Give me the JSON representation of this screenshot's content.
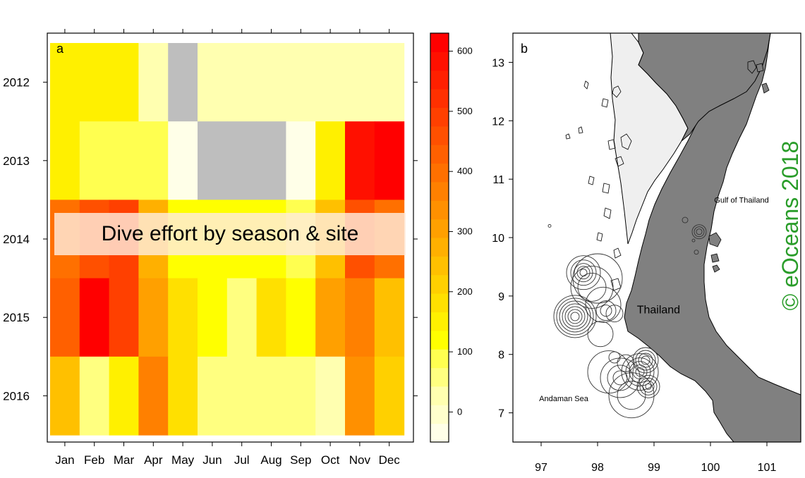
{
  "overlay_title": "Dive effort by season & site",
  "watermark": "© eOceans 2018",
  "chart_data": [
    {
      "type": "heatmap",
      "panel_label": "a",
      "x_categories": [
        "Jan",
        "Feb",
        "Mar",
        "Apr",
        "May",
        "Jun",
        "Jul",
        "Aug",
        "Sep",
        "Oct",
        "Nov",
        "Dec"
      ],
      "y_categories": [
        "2012",
        "2013",
        "2014",
        "2015",
        "2016"
      ],
      "missing_color": "#bebebe",
      "values": [
        [
          150,
          150,
          150,
          20,
          null,
          40,
          40,
          40,
          40,
          40,
          40,
          40
        ],
        [
          150,
          100,
          100,
          100,
          -20,
          null,
          null,
          null,
          -20,
          160,
          580,
          610
        ],
        [
          400,
          450,
          480,
          280,
          120,
          120,
          120,
          120,
          80,
          250,
          450,
          400
        ],
        [
          440,
          610,
          490,
          300,
          180,
          120,
          60,
          170,
          120,
          300,
          370,
          250
        ],
        [
          250,
          70,
          140,
          380,
          180,
          50,
          50,
          50,
          50,
          30,
          330,
          220
        ]
      ],
      "colorbar": {
        "ticks": [
          0,
          100,
          200,
          300,
          400,
          500,
          600
        ],
        "min": -50,
        "max": 630,
        "colors": [
          "#ffffe8",
          "#ffffcc",
          "#ffffb0",
          "#ffff80",
          "#ffff50",
          "#ffff00",
          "#fff000",
          "#ffe000",
          "#ffd000",
          "#ffc000",
          "#ffb000",
          "#ffa000",
          "#ff9000",
          "#ff8000",
          "#ff7000",
          "#ff6000",
          "#ff5000",
          "#ff4000",
          "#ff3000",
          "#ff2000",
          "#ff1000",
          "#ff0000"
        ]
      }
    },
    {
      "type": "scatter",
      "panel_label": "b",
      "xlim": [
        96.5,
        101.6
      ],
      "ylim": [
        6.5,
        13.5
      ],
      "x_ticks": [
        97,
        98,
        99,
        100,
        101
      ],
      "y_ticks": [
        7,
        8,
        9,
        10,
        11,
        12,
        13
      ],
      "labels": [
        {
          "text": "Thailand",
          "lon": 99.08,
          "lat": 8.7,
          "size": 16
        },
        {
          "text": "Gulf of Thailand",
          "lon": 100.55,
          "lat": 10.6,
          "size": 11
        },
        {
          "text": "Andaman Sea",
          "lon": 97.4,
          "lat": 7.2,
          "size": 11
        }
      ],
      "colors": {
        "land": "#808080",
        "neighbor": "#efefef",
        "circle": "#333333"
      },
      "points": [
        {
          "lon": 97.6,
          "lat": 8.65,
          "r": [
            6,
            10,
            14,
            18,
            22,
            26,
            30
          ]
        },
        {
          "lon": 97.75,
          "lat": 9.4,
          "r": [
            5,
            9,
            13,
            18,
            24
          ]
        },
        {
          "lon": 97.9,
          "lat": 9.15,
          "r": [
            20,
            30
          ]
        },
        {
          "lon": 98.0,
          "lat": 9.3,
          "r": [
            35
          ]
        },
        {
          "lon": 98.1,
          "lat": 8.85,
          "r": [
            25
          ]
        },
        {
          "lon": 98.15,
          "lat": 8.75,
          "r": [
            8,
            14
          ]
        },
        {
          "lon": 98.3,
          "lat": 8.7,
          "r": [
            12
          ]
        },
        {
          "lon": 98.05,
          "lat": 8.35,
          "r": [
            18
          ]
        },
        {
          "lon": 98.85,
          "lat": 7.9,
          "r": [
            6,
            10,
            14,
            18
          ]
        },
        {
          "lon": 98.75,
          "lat": 7.7,
          "r": [
            6,
            10,
            15,
            20,
            26
          ]
        },
        {
          "lon": 98.9,
          "lat": 7.45,
          "r": [
            4,
            8,
            12,
            16
          ]
        },
        {
          "lon": 98.4,
          "lat": 7.6,
          "r": [
            10,
            18,
            28
          ]
        },
        {
          "lon": 98.2,
          "lat": 7.7,
          "r": [
            30
          ]
        },
        {
          "lon": 98.6,
          "lat": 7.3,
          "r": [
            20,
            32
          ]
        },
        {
          "lon": 98.5,
          "lat": 7.85,
          "r": [
            12
          ]
        },
        {
          "lon": 98.3,
          "lat": 7.95,
          "r": [
            8
          ]
        },
        {
          "lon": 99.8,
          "lat": 10.1,
          "r": [
            4,
            7,
            10
          ]
        },
        {
          "lon": 99.55,
          "lat": 10.3,
          "r": [
            4
          ]
        },
        {
          "lon": 99.75,
          "lat": 9.75,
          "r": [
            3
          ]
        },
        {
          "lon": 99.7,
          "lat": 9.95,
          "r": [
            2
          ]
        },
        {
          "lon": 97.15,
          "lat": 10.2,
          "r": [
            2
          ]
        }
      ]
    }
  ]
}
